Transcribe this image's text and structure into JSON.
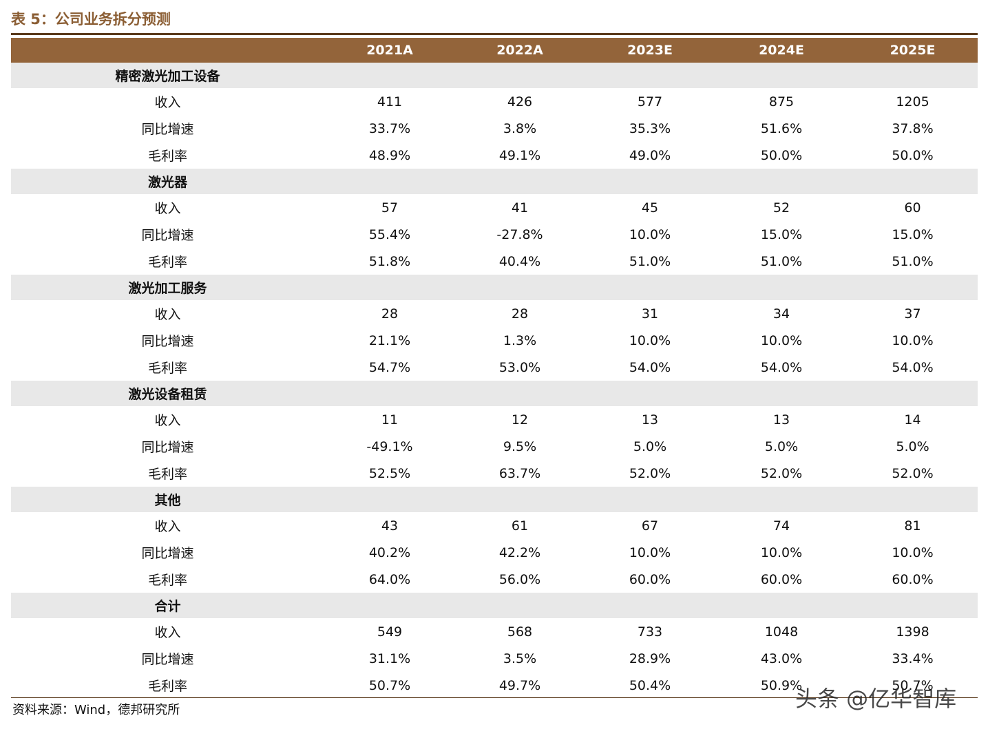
{
  "title": "表 5：公司业务拆分预测",
  "table": {
    "columns": [
      "2021A",
      "2022A",
      "2023E",
      "2024E",
      "2025E"
    ],
    "sections": [
      {
        "name": "精密激光加工设备",
        "rows": [
          [
            "收入",
            "411",
            "426",
            "577",
            "875",
            "1205"
          ],
          [
            "同比增速",
            "33.7%",
            "3.8%",
            "35.3%",
            "51.6%",
            "37.8%"
          ],
          [
            "毛利率",
            "48.9%",
            "49.1%",
            "49.0%",
            "50.0%",
            "50.0%"
          ]
        ]
      },
      {
        "name": "激光器",
        "rows": [
          [
            "收入",
            "57",
            "41",
            "45",
            "52",
            "60"
          ],
          [
            "同比增速",
            "55.4%",
            "-27.8%",
            "10.0%",
            "15.0%",
            "15.0%"
          ],
          [
            "毛利率",
            "51.8%",
            "40.4%",
            "51.0%",
            "51.0%",
            "51.0%"
          ]
        ]
      },
      {
        "name": "激光加工服务",
        "rows": [
          [
            "收入",
            "28",
            "28",
            "31",
            "34",
            "37"
          ],
          [
            "同比增速",
            "21.1%",
            "1.3%",
            "10.0%",
            "10.0%",
            "10.0%"
          ],
          [
            "毛利率",
            "54.7%",
            "53.0%",
            "54.0%",
            "54.0%",
            "54.0%"
          ]
        ]
      },
      {
        "name": "激光设备租赁",
        "rows": [
          [
            "收入",
            "11",
            "12",
            "13",
            "13",
            "14"
          ],
          [
            "同比增速",
            "-49.1%",
            "9.5%",
            "5.0%",
            "5.0%",
            "5.0%"
          ],
          [
            "毛利率",
            "52.5%",
            "63.7%",
            "52.0%",
            "52.0%",
            "52.0%"
          ]
        ]
      },
      {
        "name": "其他",
        "rows": [
          [
            "收入",
            "43",
            "61",
            "67",
            "74",
            "81"
          ],
          [
            "同比增速",
            "40.2%",
            "42.2%",
            "10.0%",
            "10.0%",
            "10.0%"
          ],
          [
            "毛利率",
            "64.0%",
            "56.0%",
            "60.0%",
            "60.0%",
            "60.0%"
          ]
        ]
      },
      {
        "name": "合计",
        "rows": [
          [
            "收入",
            "549",
            "568",
            "733",
            "1048",
            "1398"
          ],
          [
            "同比增速",
            "31.1%",
            "3.5%",
            "28.9%",
            "43.0%",
            "33.4%"
          ],
          [
            "毛利率",
            "50.7%",
            "49.7%",
            "50.4%",
            "50.9%",
            "50.7%"
          ]
        ]
      }
    ]
  },
  "source": "资料来源：Wind，德邦研究所",
  "watermark": "头条 @亿华智库"
}
